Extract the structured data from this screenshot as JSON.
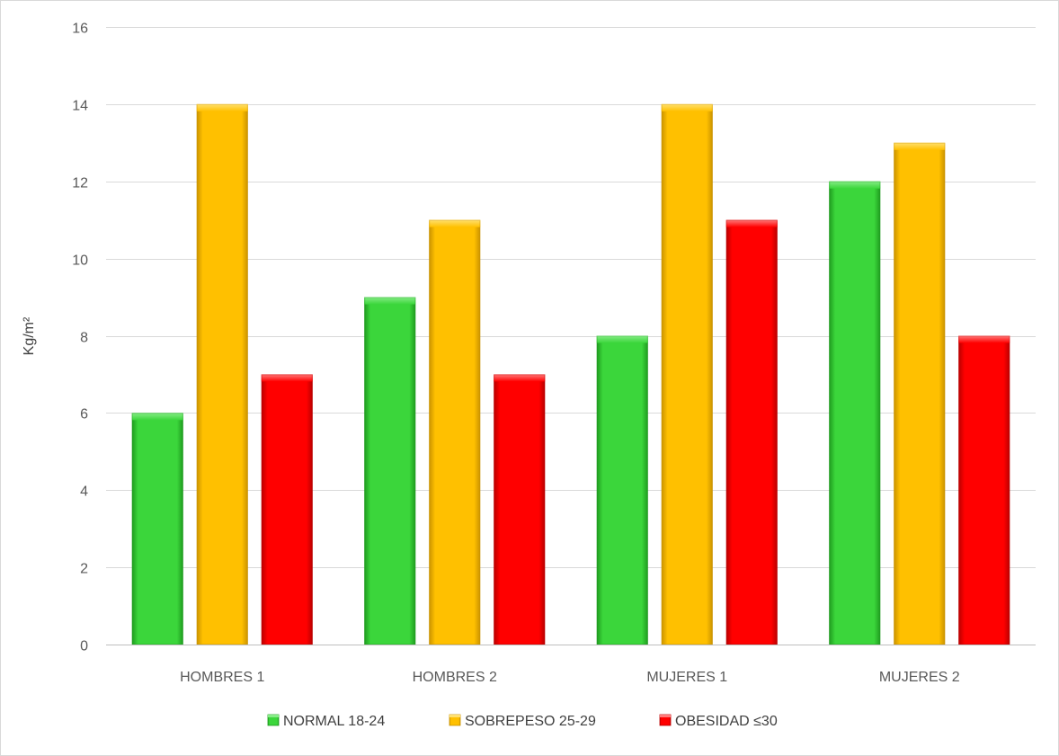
{
  "chart_data": {
    "type": "bar",
    "categories": [
      "HOMBRES 1",
      "HOMBRES 2",
      "MUJERES 1",
      "MUJERES 2"
    ],
    "series": [
      {
        "name": "NORMAL 18-24",
        "values": [
          6,
          9,
          8,
          12
        ],
        "color": "#3bd63b",
        "light": "#86ec86",
        "dark": "#1f9a1f"
      },
      {
        "name": "SOBREPESO 25-29",
        "values": [
          14,
          11,
          14,
          13
        ],
        "color": "#ffc000",
        "light": "#ffe070",
        "dark": "#c99200"
      },
      {
        "name": "OBESIDAD ≤30",
        "values": [
          7,
          7,
          11,
          8
        ],
        "color": "#ff0000",
        "light": "#ff7a7a",
        "dark": "#b80000"
      }
    ],
    "title": "",
    "xlabel": "",
    "ylabel": "Kg/m²",
    "ylim": [
      0,
      16
    ],
    "yticks": [
      "0",
      "2",
      "4",
      "6",
      "8",
      "10",
      "12",
      "14",
      "16"
    ],
    "grid": true,
    "legend": "bottom"
  }
}
